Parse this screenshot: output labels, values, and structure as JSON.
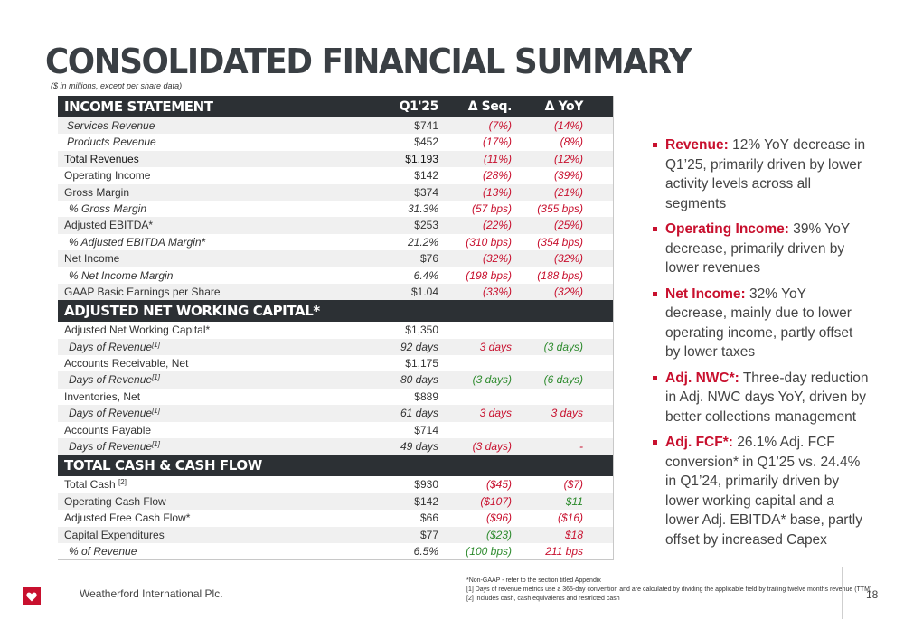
{
  "page": {
    "title": "CONSOLIDATED FINANCIAL SUMMARY",
    "subtitle": "($ in millions, except per share data)"
  },
  "colors": {
    "accent": "#c8102e",
    "header_bg": "#2c3034",
    "positive": "#2e8b2e"
  },
  "table": {
    "columns": [
      "Q1'25",
      "Δ Seq.",
      "Δ YoY"
    ],
    "income": {
      "title": "INCOME STATEMENT",
      "rows": [
        {
          "label": "Services Revenue",
          "q": "$741",
          "seq": "(7%)",
          "yoy": "(14%)"
        },
        {
          "label": "Products Revenue",
          "q": "$452",
          "seq": "(17%)",
          "yoy": "(8%)"
        },
        {
          "label": "Total Revenues",
          "q": "$1,193",
          "seq": "(11%)",
          "yoy": "(12%)"
        },
        {
          "label": "Operating Income",
          "q": "$142",
          "seq": "(28%)",
          "yoy": "(39%)"
        },
        {
          "label": "Gross Margin",
          "q": "$374",
          "seq": "(13%)",
          "yoy": "(21%)"
        },
        {
          "label": "% Gross Margin",
          "q": "31.3%",
          "seq": "(57 bps)",
          "yoy": "(355 bps)"
        },
        {
          "label": "Adjusted EBITDA*",
          "q": "$253",
          "seq": "(22%)",
          "yoy": "(25%)"
        },
        {
          "label": "% Adjusted EBITDA Margin*",
          "q": "21.2%",
          "seq": "(310 bps)",
          "yoy": "(354 bps)"
        },
        {
          "label": "Net Income",
          "q": "$76",
          "seq": "(32%)",
          "yoy": "(32%)"
        },
        {
          "label": "% Net Income Margin",
          "q": "6.4%",
          "seq": "(198 bps)",
          "yoy": "(188 bps)"
        },
        {
          "label": "GAAP Basic Earnings per Share",
          "q": "$1.04",
          "seq": "(33%)",
          "yoy": "(32%)"
        }
      ]
    },
    "nwc": {
      "title": "ADJUSTED NET WORKING CAPITAL*",
      "rows": [
        {
          "label": "Adjusted Net Working Capital*",
          "q": "$1,350",
          "seq": "",
          "yoy": ""
        },
        {
          "label": "Days of Revenue",
          "sup": "[1]",
          "q": "92 days",
          "seq": "3 days",
          "yoy": "(3 days)"
        },
        {
          "label": "Accounts Receivable, Net",
          "q": "$1,175",
          "seq": "",
          "yoy": ""
        },
        {
          "label": "Days of Revenue",
          "sup": "[1]",
          "q": "80 days",
          "seq": "(3 days)",
          "yoy": "(6 days)"
        },
        {
          "label": "Inventories, Net",
          "q": "$889",
          "seq": "",
          "yoy": ""
        },
        {
          "label": "Days of Revenue",
          "sup": "[1]",
          "q": "61 days",
          "seq": "3 days",
          "yoy": "3 days"
        },
        {
          "label": "Accounts Payable",
          "q": "$714",
          "seq": "",
          "yoy": ""
        },
        {
          "label": "Days of Revenue",
          "sup": "[1]",
          "q": "49 days",
          "seq": "(3 days)",
          "yoy": "-"
        }
      ]
    },
    "cash": {
      "title": "TOTAL CASH & CASH FLOW",
      "rows": [
        {
          "label": "Total Cash",
          "sup": "[2]",
          "q": "$930",
          "seq": "($45)",
          "yoy": "($7)"
        },
        {
          "label": "Operating Cash Flow",
          "q": "$142",
          "seq": "($107)",
          "yoy": "$11"
        },
        {
          "label": "Adjusted Free Cash Flow*",
          "q": "$66",
          "seq": "($96)",
          "yoy": "($16)"
        },
        {
          "label": "Capital Expenditures",
          "q": "$77",
          "seq": "($23)",
          "yoy": "$18"
        },
        {
          "label": "% of Revenue",
          "q": "6.5%",
          "seq": "(100 bps)",
          "yoy": "211 bps"
        }
      ]
    }
  },
  "bullets": [
    {
      "head": "Revenue:",
      "text": " 12% YoY decrease in Q1’25, primarily driven by lower activity levels across all segments"
    },
    {
      "head": "Operating Income:",
      "text": " 39% YoY decrease, primarily driven by lower revenues"
    },
    {
      "head": "Net Income:",
      "text": " 32% YoY decrease, mainly due to lower operating income, partly offset by lower taxes"
    },
    {
      "head": "Adj. NWC*:",
      "text": " Three-day reduction in Adj. NWC days YoY, driven by better collections management"
    },
    {
      "head": "Adj. FCF*:",
      "text": " 26.1% Adj. FCF conversion* in Q1’25 vs. 24.4% in Q1’24, primarily driven by lower working capital and a lower Adj. EBITDA* base, partly offset by increased Capex"
    }
  ],
  "footer": {
    "company": "Weatherford International Plc.",
    "notes": [
      "*Non-GAAP - refer to the section titled Appendix",
      "[1] Days of revenue metrics use a 365-day convention and are calculated by dividing the applicable field by trailing twelve months revenue (TTM)",
      "[2] Includes cash, cash equivalents and restricted cash"
    ],
    "page_number": "18",
    "logo_icon": "heart-logo-icon"
  }
}
